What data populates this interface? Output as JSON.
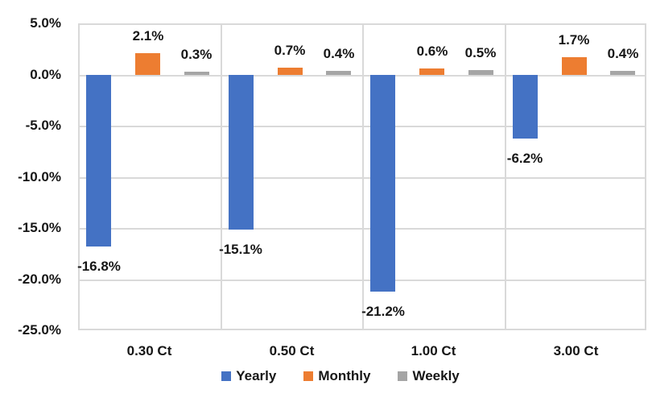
{
  "chart_data": {
    "type": "bar",
    "title": "",
    "categories": [
      "0.30 Ct",
      "0.50 Ct",
      "1.00 Ct",
      "3.00 Ct"
    ],
    "series": [
      {
        "name": "Yearly",
        "color": "#4472C4",
        "values": [
          -16.8,
          -15.1,
          -21.2,
          -6.2
        ],
        "labels": [
          "-16.8%",
          "-15.1%",
          "-21.2%",
          "-6.2%"
        ]
      },
      {
        "name": "Monthly",
        "color": "#ED7D31",
        "values": [
          2.1,
          0.7,
          0.6,
          1.7
        ],
        "labels": [
          "2.1%",
          "0.7%",
          "0.6%",
          "1.7%"
        ]
      },
      {
        "name": "Weekly",
        "color": "#A5A5A5",
        "values": [
          0.3,
          0.4,
          0.5,
          0.4
        ],
        "labels": [
          "0.3%",
          "0.4%",
          "0.5%",
          "0.4%"
        ]
      }
    ],
    "y_axis": {
      "min": -25,
      "max": 5,
      "step": 5,
      "ticks": [
        "5.0%",
        "0.0%",
        "-5.0%",
        "-10.0%",
        "-15.0%",
        "-20.0%",
        "-25.0%"
      ]
    },
    "xlabel": "",
    "ylabel": "",
    "legend": {
      "position": "bottom",
      "entries": [
        "Yearly",
        "Monthly",
        "Weekly"
      ]
    },
    "grid": true,
    "gridline_color": "#D9D9D9",
    "text_color": "#161616",
    "background": "#FFFFFF"
  }
}
